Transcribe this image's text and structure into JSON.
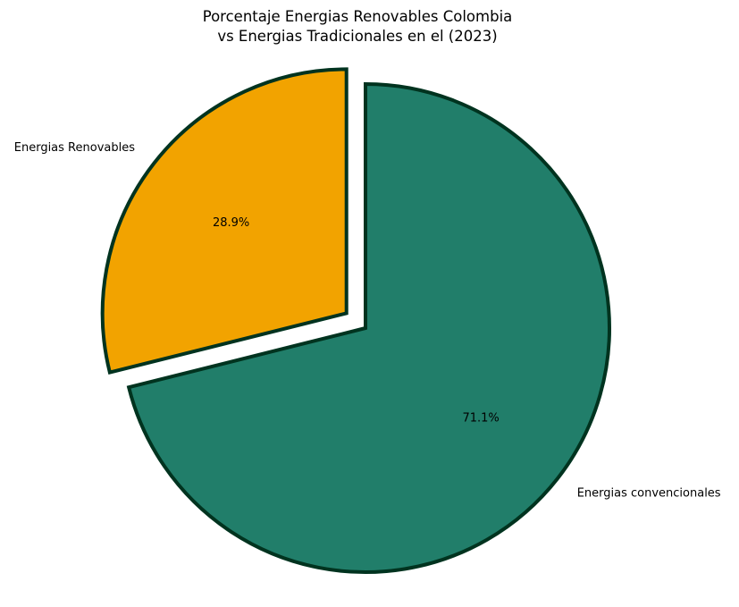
{
  "chart_data": {
    "type": "pie",
    "title_lines": [
      "Porcentaje Energias Renovables Colombia",
      "vs Energias Tradicionales en el (2023)"
    ],
    "slices": [
      {
        "label": "Energias Renovables",
        "percent": 28.9,
        "percent_label": "28.9%",
        "color": "#f2a300",
        "exploded": true
      },
      {
        "label": "Energias convencionales",
        "percent": 71.1,
        "percent_label": "71.1%",
        "color": "#217e6a",
        "exploded": false
      }
    ],
    "edge_color": "#00331f",
    "start_angle_deg": 90,
    "direction": "counterclockwise"
  }
}
